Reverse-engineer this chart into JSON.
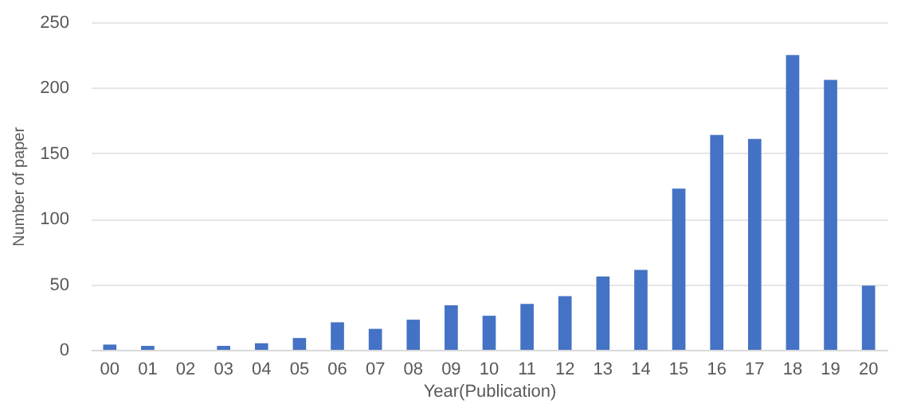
{
  "chart_data": {
    "type": "bar",
    "xlabel": "Year(Publication)",
    "ylabel": "Number of paper",
    "categories": [
      "00",
      "01",
      "02",
      "03",
      "04",
      "05",
      "06",
      "07",
      "08",
      "09",
      "10",
      "11",
      "12",
      "13",
      "14",
      "15",
      "16",
      "17",
      "18",
      "19",
      "20"
    ],
    "values": [
      4,
      3,
      0,
      3,
      5,
      9,
      21,
      16,
      23,
      34,
      26,
      35,
      41,
      56,
      61,
      123,
      164,
      161,
      225,
      206,
      49
    ],
    "color": "#4472c4",
    "ylim": [
      0,
      250
    ],
    "yticks": [
      0,
      50,
      100,
      150,
      200,
      250
    ],
    "grid": "y"
  }
}
